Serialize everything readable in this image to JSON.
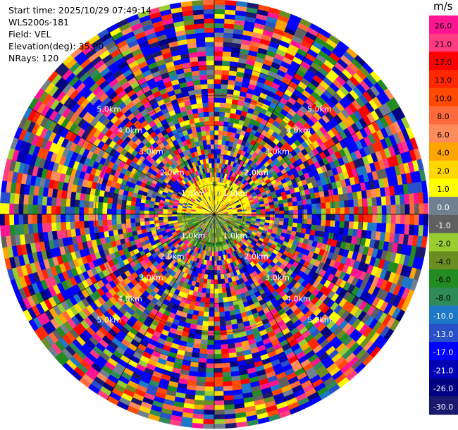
{
  "info": {
    "start_time": "Start time: 2025/10/29 07:49:14",
    "instrument": "WLS200s-181",
    "field": "Field: VEL",
    "elevation": "Elevation(deg): 35.00",
    "nrays": "NRays: 120"
  },
  "chart_data": {
    "type": "heatmap",
    "projection": "polar (PPI scan)",
    "title": "",
    "field": "VEL",
    "elevation_deg": 35.0,
    "n_rays": 120,
    "range_ring_labels": [
      "1.0km",
      "2.0km",
      "3.0km",
      "4.0km",
      "5.0km"
    ],
    "range_rings_km": [
      1,
      2,
      3,
      4,
      5
    ],
    "max_range_km": 7.2,
    "azimuth_lines_deg": [
      0,
      30,
      60,
      90,
      120,
      150,
      180,
      210,
      240,
      270,
      300,
      330
    ],
    "description_of_field": "Near-range (<~1.2 km) mostly light velocities (yellow +1 to +4 m/s north side, olive/green -2 to -4 m/s south side); beyond ~1.5 km the field is dominated by noisy speckle spanning the full colour range.",
    "colorbar": {
      "unit": "m/s",
      "ticks": [
        "26.0",
        "21.0",
        "17.0",
        "13.0",
        "10.0",
        "8.0",
        "6.0",
        "4.0",
        "2.0",
        "1.0",
        "0.0",
        "-1.0",
        "-2.0",
        "-4.0",
        "-6.0",
        "-8.0",
        "-10.0",
        "-13.0",
        "-17.0",
        "-21.0",
        "-26.0",
        "-30.0"
      ],
      "colors": [
        "#ff1493",
        "#ff3c82",
        "#ff0000",
        "#ff2800",
        "#ff4a00",
        "#ff6a3c",
        "#ff8c5a",
        "#ffa500",
        "#ffd700",
        "#ffff00",
        "#708090",
        "#606060",
        "#9acd32",
        "#6b8e23",
        "#228b22",
        "#2e8b57",
        "#1e78c8",
        "#2850c8",
        "#0000ff",
        "#0000b4",
        "#000080",
        "#191970"
      ]
    }
  }
}
